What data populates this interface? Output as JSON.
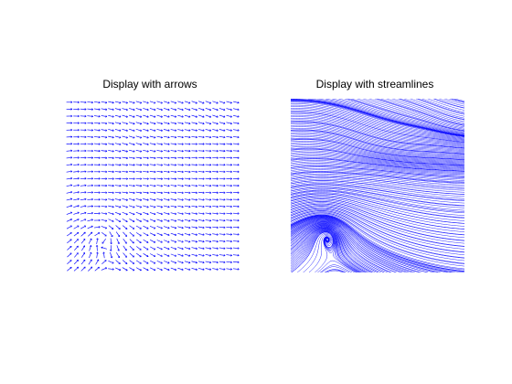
{
  "figure": {
    "panels": [
      {
        "id": "arrows",
        "title": "Display with arrows"
      },
      {
        "id": "streamlines",
        "title": "Display with streamlines"
      }
    ]
  },
  "colors": {
    "background": "#ffffff",
    "text": "#000000",
    "vectors": "#0000ff"
  }
}
